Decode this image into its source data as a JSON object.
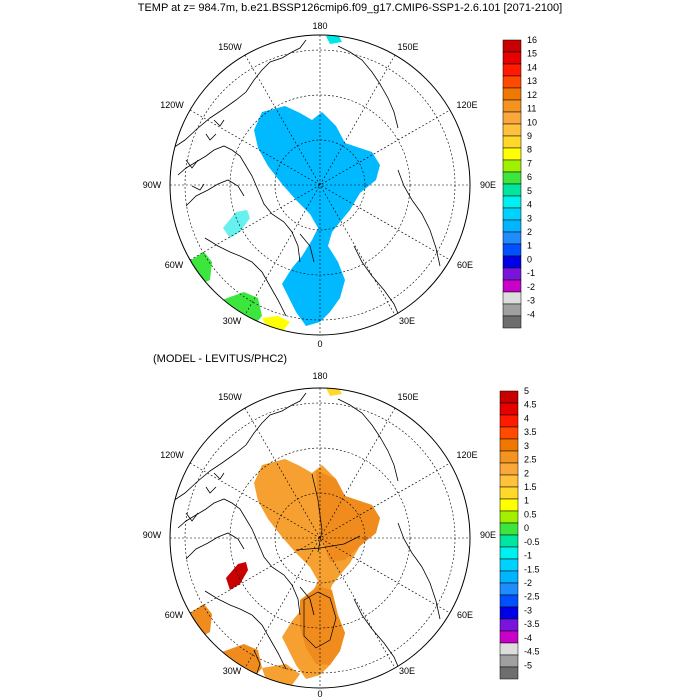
{
  "figure": {
    "title": "TEMP at z= 984.7m, b.e21.BSSP126cmip6.f09_g17.CMIP6-SSP1-2.6.101 [2071-2100]",
    "subtitle": "(MODEL - LEVITUS/PHC2)"
  },
  "maps": [
    {
      "panel": "top",
      "projection": "north polar stereographic",
      "longitude_labels": [
        "180",
        "150E",
        "120E",
        "90E",
        "60E",
        "30E",
        "0",
        "30W",
        "60W",
        "90W",
        "120W",
        "150W"
      ],
      "colorbar": {
        "labels": [
          "16",
          "15",
          "14",
          "13",
          "12",
          "11",
          "10",
          "9",
          "8",
          "7",
          "6",
          "5",
          "4",
          "3",
          "2",
          "1",
          "0",
          "-1",
          "-2",
          "-3",
          "-4"
        ],
        "colors": [
          "#c80000",
          "#e60000",
          "#ff1a00",
          "#ff4a00",
          "#f07800",
          "#f59321",
          "#faa83c",
          "#ffc23a",
          "#ffd82a",
          "#ffff00",
          "#a0f000",
          "#3ce63c",
          "#00e6a0",
          "#00f0f0",
          "#00d2ff",
          "#00b4ff",
          "#1e8cff",
          "#0050ff",
          "#0000e6",
          "#7814dc",
          "#c800c8",
          "#dddddd",
          "#a0a0a0",
          "#6e6e6e"
        ]
      },
      "field_color": "#00b9ff"
    },
    {
      "panel": "bottom",
      "projection": "north polar stereographic",
      "longitude_labels": [
        "180",
        "150E",
        "120E",
        "90E",
        "60E",
        "30E",
        "0",
        "30W",
        "60W",
        "90W",
        "120W",
        "150W"
      ],
      "colorbar": {
        "labels": [
          "5",
          "4.5",
          "4",
          "3.5",
          "3",
          "2.5",
          "2",
          "1.5",
          "1",
          "0.5",
          "0",
          "-0.5",
          "-1",
          "-1.5",
          "-2",
          "-2.5",
          "-3",
          "-3.5",
          "-4",
          "-4.5",
          "-5"
        ],
        "colors": [
          "#c80000",
          "#e60000",
          "#ff1a00",
          "#ff4a00",
          "#f07800",
          "#f59321",
          "#faa83c",
          "#ffc23a",
          "#ffd82a",
          "#ffff00",
          "#a0f000",
          "#3ce63c",
          "#00e6a0",
          "#00f0f0",
          "#00d2ff",
          "#00b4ff",
          "#1e8cff",
          "#0050ff",
          "#0000e6",
          "#7814dc",
          "#c800c8",
          "#dddddd",
          "#a0a0a0",
          "#6e6e6e"
        ]
      },
      "field_color": "#f5a030"
    }
  ]
}
